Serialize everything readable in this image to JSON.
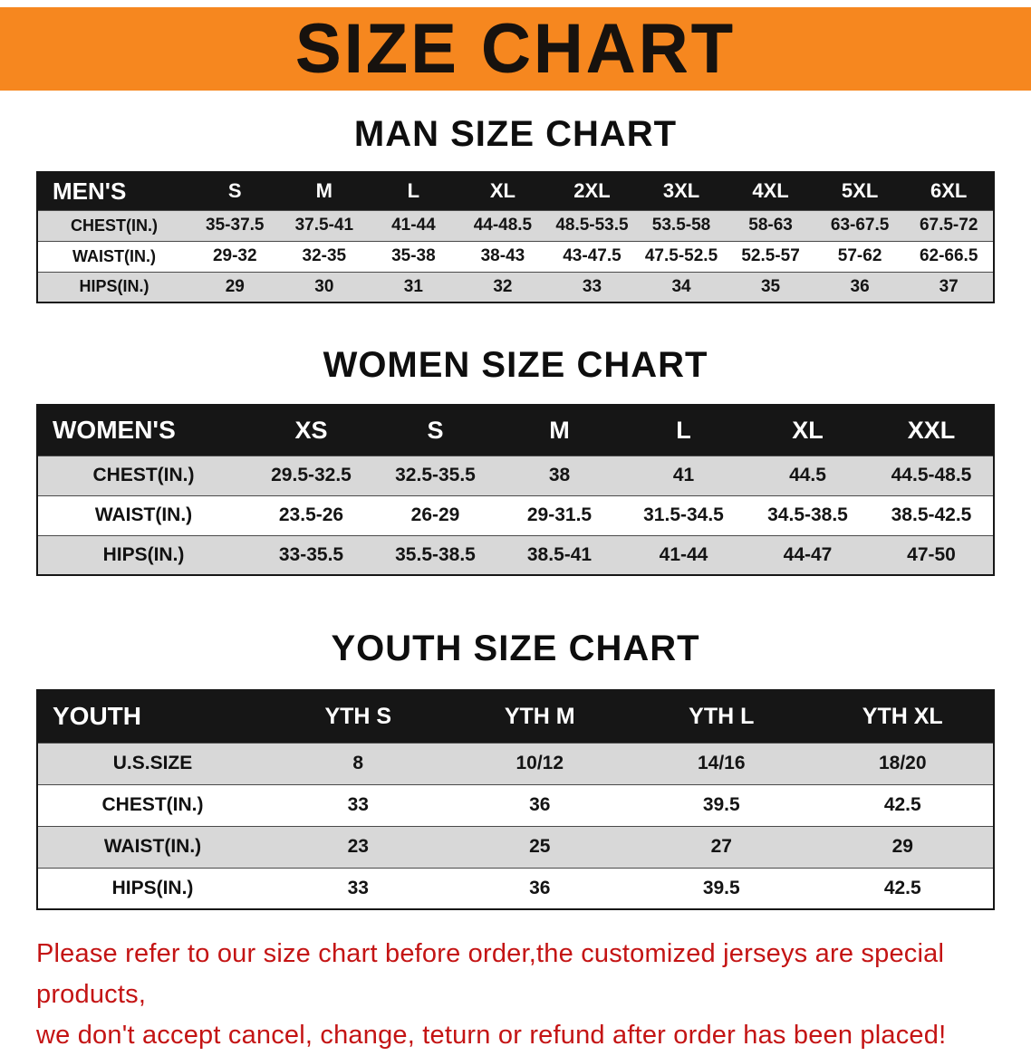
{
  "banner": {
    "title": "SIZE CHART"
  },
  "colors": {
    "banner_bg": "#f6871f",
    "table_header_bg": "#161616",
    "shaded_row": "#d8d8d8",
    "disclaimer_text": "#c41414"
  },
  "men": {
    "heading": "MAN SIZE CHART",
    "corner": "MEN'S",
    "sizes": [
      "S",
      "M",
      "L",
      "XL",
      "2XL",
      "3XL",
      "4XL",
      "5XL",
      "6XL"
    ],
    "rows": [
      {
        "label": "CHEST(IN.)",
        "values": [
          "35-37.5",
          "37.5-41",
          "41-44",
          "44-48.5",
          "48.5-53.5",
          "53.5-58",
          "58-63",
          "63-67.5",
          "67.5-72"
        ]
      },
      {
        "label": "WAIST(IN.)",
        "values": [
          "29-32",
          "32-35",
          "35-38",
          "38-43",
          "43-47.5",
          "47.5-52.5",
          "52.5-57",
          "57-62",
          "62-66.5"
        ]
      },
      {
        "label": "HIPS(IN.)",
        "values": [
          "29",
          "30",
          "31",
          "32",
          "33",
          "34",
          "35",
          "36",
          "37"
        ]
      }
    ]
  },
  "women": {
    "heading": "WOMEN SIZE CHART",
    "corner": "WOMEN'S",
    "sizes": [
      "XS",
      "S",
      "M",
      "L",
      "XL",
      "XXL"
    ],
    "rows": [
      {
        "label": "CHEST(IN.)",
        "values": [
          "29.5-32.5",
          "32.5-35.5",
          "38",
          "41",
          "44.5",
          "44.5-48.5"
        ]
      },
      {
        "label": "WAIST(IN.)",
        "values": [
          "23.5-26",
          "26-29",
          "29-31.5",
          "31.5-34.5",
          "34.5-38.5",
          "38.5-42.5"
        ]
      },
      {
        "label": "HIPS(IN.)",
        "values": [
          "33-35.5",
          "35.5-38.5",
          "38.5-41",
          "41-44",
          "44-47",
          "47-50"
        ]
      }
    ]
  },
  "youth": {
    "heading": "YOUTH SIZE CHART",
    "corner": "YOUTH",
    "sizes": [
      "YTH S",
      "YTH M",
      "YTH L",
      "YTH XL"
    ],
    "rows": [
      {
        "label": "U.S.SIZE",
        "values": [
          "8",
          "10/12",
          "14/16",
          "18/20"
        ]
      },
      {
        "label": "CHEST(IN.)",
        "values": [
          "33",
          "36",
          "39.5",
          "42.5"
        ]
      },
      {
        "label": "WAIST(IN.)",
        "values": [
          "23",
          "25",
          "27",
          "29"
        ]
      },
      {
        "label": "HIPS(IN.)",
        "values": [
          "33",
          "36",
          "39.5",
          "42.5"
        ]
      }
    ]
  },
  "disclaimer": {
    "line1": "Please refer to our size chart before order,the customized jerseys are special products,",
    "line2": "we don't accept cancel, change, teturn or refund after order has been placed!"
  }
}
